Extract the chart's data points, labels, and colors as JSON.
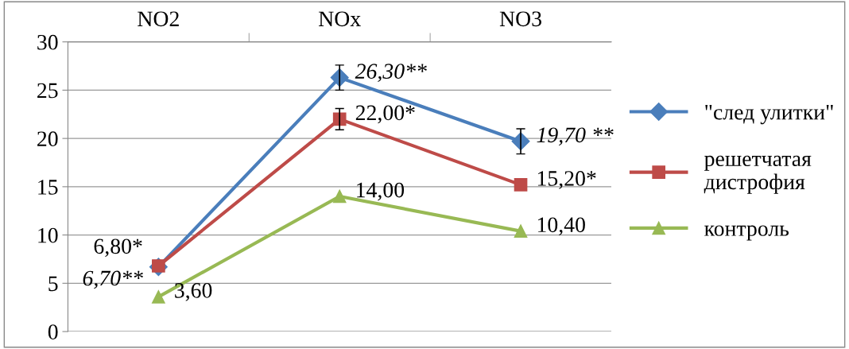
{
  "chart_data": {
    "type": "line",
    "categories": [
      "NO2",
      "NOx",
      "NO3"
    ],
    "series": [
      {
        "name": "\"след улитки\"",
        "color": "#4a7ebb",
        "marker": "diamond",
        "values": [
          6.7,
          26.3,
          19.7
        ],
        "errors": [
          null,
          1.3,
          1.3
        ],
        "value_labels": [
          "6,70**",
          "26,30**",
          "19,70 **"
        ]
      },
      {
        "name": "решетчатая\nдистрофия",
        "color": "#be4b48",
        "marker": "square",
        "values": [
          6.8,
          22.0,
          15.2
        ],
        "errors": [
          null,
          1.1,
          null
        ],
        "value_labels": [
          "6,80*",
          "22,00*",
          "15,20*"
        ]
      },
      {
        "name": "контроль",
        "color": "#98b954",
        "marker": "triangle",
        "values": [
          3.6,
          14.0,
          10.4
        ],
        "value_labels": [
          "3,60",
          "14,00",
          "10,40"
        ]
      }
    ],
    "ylim": [
      0,
      30
    ],
    "yticks": [
      0,
      5,
      10,
      15,
      20,
      25,
      30
    ],
    "grid": "y",
    "legend": "right"
  }
}
